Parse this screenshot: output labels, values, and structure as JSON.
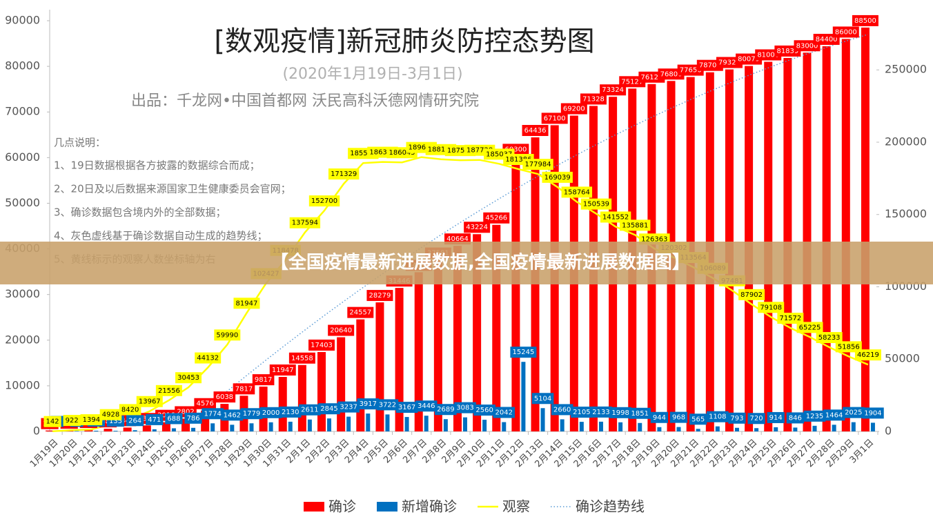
{
  "chart_data": {
    "type": "combo",
    "title": "[数观疫情]新冠肺炎防控态势图",
    "subtitle": "(2020年1月19日-3月1日)",
    "source": "出品：千龙网•中国首都网   沃民高科沃德网情研究院",
    "notes_title": "几点说明：",
    "notes": [
      "1、19日数据根据各方披露的数据综合而成；",
      "2、20日及以后数据来源国家卫生健康委员会官网；",
      "3、确诊数据包含境内外的全部数据；",
      "4、灰色虚线基于确诊数据自动生成的趋势线；",
      "5、黄线标示的观察人数坐标轴为右"
    ],
    "categories": [
      "1月19日",
      "1月20日",
      "1月21日",
      "1月22日",
      "1月23日",
      "1月24日",
      "1月25日",
      "1月26日",
      "1月27日",
      "1月28日",
      "1月29日",
      "1月30日",
      "1月31日",
      "2月1日",
      "2月2日",
      "2月3日",
      "2月4日",
      "2月5日",
      "2月6日",
      "2月7日",
      "2月8日",
      "2月9日",
      "2月10日",
      "2月11日",
      "2月12日",
      "2月13日",
      "2月14日",
      "2月15日",
      "2月16日",
      "2月17日",
      "2月18日",
      "2月19日",
      "2月20日",
      "2月21日",
      "2月22日",
      "2月23日",
      "2月24日",
      "2月25日",
      "2月26日",
      "2月27日",
      "2月28日",
      "2月29日",
      "3月1日"
    ],
    "series": [
      {
        "name": "确诊",
        "type": "bar",
        "color": "#ff0000",
        "axis": "y",
        "data_labels": true,
        "values": [
          204,
          295,
          448,
          583,
          847,
          1318,
          2016,
          2802,
          4576,
          6038,
          7817,
          9817,
          11947,
          14558,
          17403,
          20640,
          24557,
          28279,
          31446,
          34892,
          37581,
          40664,
          43224,
          45266,
          60300,
          64436,
          67100,
          69200,
          71328,
          73324,
          75127,
          76120,
          76800,
          77656,
          78700,
          79329,
          80079,
          81000,
          81839,
          83000,
          84400,
          86000,
          88500
        ]
      },
      {
        "name": "新增确诊",
        "type": "bar",
        "color": "#0070c0",
        "axis": "y",
        "data_labels": true,
        "values": [
          79,
          93,
          150,
          135,
          264,
          471,
          688,
          786,
          1774,
          1462,
          1779,
          2000,
          2130,
          2611,
          2845,
          3237,
          3917,
          3722,
          3167,
          3446,
          2689,
          3083,
          2560,
          2042,
          15245,
          5104,
          2660,
          2105,
          2133,
          1998,
          1851,
          944,
          968,
          565,
          1108,
          793,
          720,
          914,
          846,
          1235,
          1464,
          2025,
          1904
        ]
      },
      {
        "name": "观察",
        "type": "line",
        "color": "#ffff00",
        "axis": "y2",
        "data_labels": true,
        "values": [
          142,
          922,
          1394,
          4928,
          8420,
          13967,
          21556,
          30453,
          44132,
          59990,
          81947,
          102427,
          118478,
          137594,
          152700,
          171329,
          185555,
          186354,
          186045,
          189660,
          188183,
          187518,
          187728,
          185037,
          181386,
          177984,
          169039,
          158764,
          150539,
          141552,
          135881,
          126363,
          120302,
          113564,
          106089,
          97481,
          87902,
          79108,
          71572,
          65225,
          58233,
          51856,
          46219
        ]
      },
      {
        "name": "确诊趋势线",
        "type": "dotted",
        "color": "#5b9bd5",
        "axis": "y",
        "data_labels": false,
        "values": [
          null,
          null,
          null,
          null,
          null,
          null,
          null,
          1712,
          5300,
          8820,
          12273,
          15658,
          18975,
          22225,
          25406,
          28520,
          31567,
          34545,
          37456,
          40300,
          43075,
          45783,
          48423,
          50995,
          53500,
          55936,
          58306,
          60607,
          62840,
          65006,
          67105,
          69136,
          71098,
          72993,
          74821,
          76580,
          78272,
          79897,
          81453,
          82942,
          84363,
          85716,
          87002
        ]
      }
    ],
    "ylim": [
      0,
      90000
    ],
    "yticks": [
      0,
      10000,
      20000,
      30000,
      40000,
      50000,
      60000,
      70000,
      80000,
      90000
    ],
    "y2lim": [
      0,
      284000
    ],
    "y2ticks": [
      0,
      50000,
      100000,
      150000,
      200000,
      250000
    ],
    "grid": false,
    "legend": "bottom"
  },
  "banner": "【全国疫情最新进展数据,全国疫情最新进展数据图】"
}
